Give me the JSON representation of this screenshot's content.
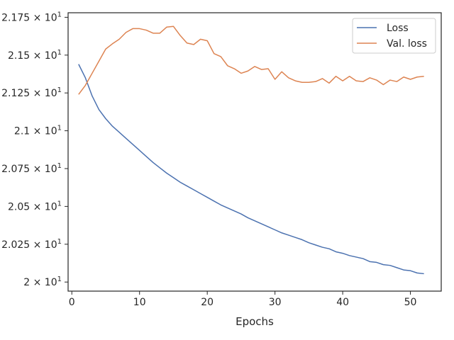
{
  "chart_data": {
    "type": "line",
    "title": "",
    "xlabel": "Epochs",
    "ylabel": "",
    "xlim": [
      -0.55,
      54.55
    ],
    "ylim": [
      19.94,
      21.78
    ],
    "xticks": [
      0,
      10,
      20,
      30,
      40,
      50
    ],
    "yticks": [
      {
        "value": 20.0,
        "mantissa": "2",
        "exp": "1"
      },
      {
        "value": 20.25,
        "mantissa": "2.025",
        "exp": "1"
      },
      {
        "value": 20.5,
        "mantissa": "2.05",
        "exp": "1"
      },
      {
        "value": 20.75,
        "mantissa": "2.075",
        "exp": "1"
      },
      {
        "value": 21.0,
        "mantissa": "2.1",
        "exp": "1"
      },
      {
        "value": 21.25,
        "mantissa": "2.125",
        "exp": "1"
      },
      {
        "value": 21.5,
        "mantissa": "2.15",
        "exp": "1"
      },
      {
        "value": 21.75,
        "mantissa": "2.175",
        "exp": "1"
      }
    ],
    "ytick_times": "×",
    "ytick_base": "10",
    "grid": false,
    "legend_position": "top-right",
    "x": [
      1,
      2,
      3,
      4,
      5,
      6,
      7,
      8,
      9,
      10,
      11,
      12,
      13,
      14,
      15,
      16,
      17,
      18,
      19,
      20,
      21,
      22,
      23,
      24,
      25,
      26,
      27,
      28,
      29,
      30,
      31,
      32,
      33,
      34,
      35,
      36,
      37,
      38,
      39,
      40,
      41,
      42,
      43,
      44,
      45,
      46,
      47,
      48,
      49,
      50,
      51,
      52
    ],
    "series": [
      {
        "name": "Loss",
        "color": "#4c72b0",
        "values": [
          21.44,
          21.35,
          21.23,
          21.14,
          21.08,
          21.03,
          20.99,
          20.95,
          20.91,
          20.87,
          20.83,
          20.79,
          20.755,
          20.72,
          20.69,
          20.66,
          20.635,
          20.61,
          20.585,
          20.56,
          20.535,
          20.51,
          20.49,
          20.47,
          20.45,
          20.425,
          20.405,
          20.385,
          20.365,
          20.345,
          20.325,
          20.31,
          20.295,
          20.28,
          20.26,
          20.245,
          20.23,
          20.22,
          20.2,
          20.19,
          20.175,
          20.165,
          20.155,
          20.135,
          20.13,
          20.115,
          20.11,
          20.095,
          20.08,
          20.075,
          20.06,
          20.055
        ]
      },
      {
        "name": "Val. loss",
        "color": "#dd8452",
        "values": [
          21.24,
          21.3,
          21.38,
          21.46,
          21.54,
          21.575,
          21.605,
          21.65,
          21.675,
          21.675,
          21.665,
          21.645,
          21.645,
          21.685,
          21.69,
          21.63,
          21.58,
          21.57,
          21.605,
          21.595,
          21.51,
          21.49,
          21.43,
          21.41,
          21.38,
          21.395,
          21.425,
          21.405,
          21.41,
          21.34,
          21.39,
          21.35,
          21.33,
          21.32,
          21.32,
          21.325,
          21.345,
          21.315,
          21.36,
          21.33,
          21.36,
          21.33,
          21.325,
          21.35,
          21.335,
          21.305,
          21.335,
          21.325,
          21.355,
          21.34,
          21.355,
          21.36
        ]
      }
    ]
  }
}
